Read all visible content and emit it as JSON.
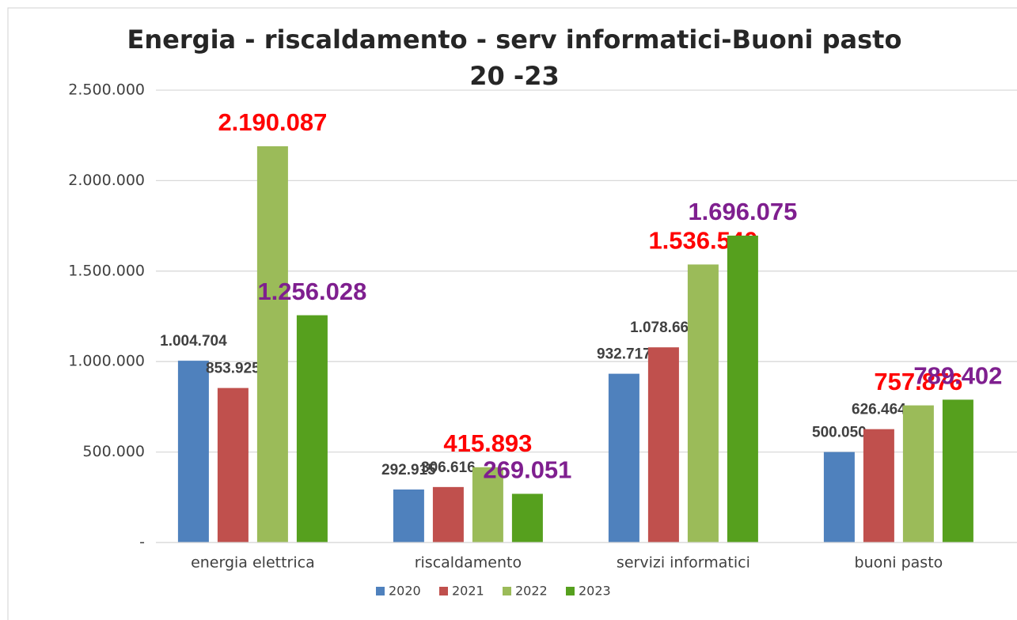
{
  "chart_data": {
    "type": "bar",
    "title": [
      "Energia - riscaldamento - serv informatici-Buoni pasto",
      "20 -23"
    ],
    "categories": [
      "energia elettrica",
      "riscaldamento",
      "servizi informatici",
      "buoni pasto"
    ],
    "series": [
      {
        "name": "2020",
        "color": "#4f81bd",
        "label_color": "#404040",
        "values": [
          1004704,
          292915,
          932717,
          500050
        ],
        "value_labels": [
          "1.004.704",
          "292.915",
          "932.717",
          "500.050"
        ]
      },
      {
        "name": "2021",
        "color": "#c0504d",
        "label_color": "#404040",
        "values": [
          853925,
          306616,
          1078666,
          626464
        ],
        "value_labels": [
          "853.925",
          "306.616",
          "1.078.666",
          "626.464"
        ]
      },
      {
        "name": "2022",
        "color": "#9bbb59",
        "label_color": "#ff0000",
        "values": [
          2190087,
          415893,
          1536540,
          757876
        ],
        "value_labels": [
          "2.190.087",
          "415.893",
          "1.536.540",
          "757.876"
        ]
      },
      {
        "name": "2023",
        "color": "#56a01e",
        "label_color": "#7f1f8f",
        "values": [
          1256028,
          269051,
          1696075,
          789402
        ],
        "value_labels": [
          "1.256.028",
          "269.051",
          "1.696.075",
          "789.402"
        ]
      }
    ],
    "ylim": [
      0,
      2500000
    ],
    "yticks": [
      {
        "value": 0,
        "label": "-"
      },
      {
        "value": 500000,
        "label": "500.000"
      },
      {
        "value": 1000000,
        "label": "1.000.000"
      },
      {
        "value": 1500000,
        "label": "1.500.000"
      },
      {
        "value": 2000000,
        "label": "2.000.000"
      },
      {
        "value": 2500000,
        "label": "2.500.000"
      }
    ],
    "grid": true,
    "legend": "bottom"
  }
}
